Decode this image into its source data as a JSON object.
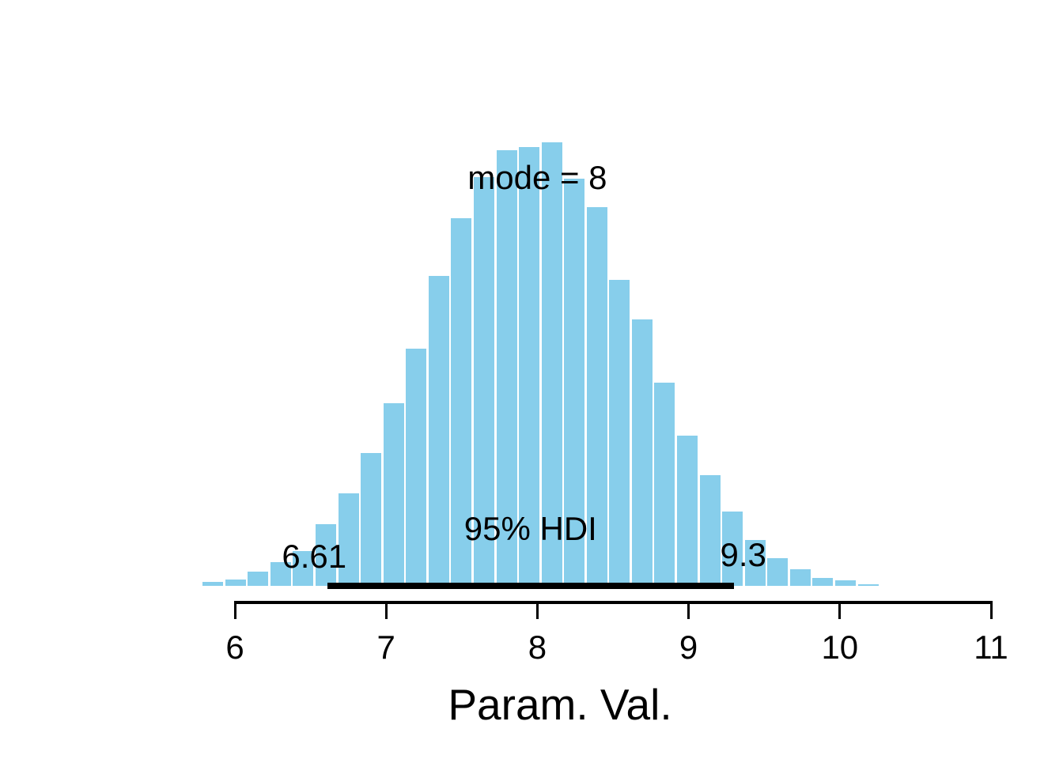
{
  "figure": {
    "background": "#ffffff",
    "bar_fill": "#87CEEB",
    "bar_gap_color": "#ffffff",
    "hdi_line_color": "#000000",
    "text_color": "#000000"
  },
  "chart_data": {
    "type": "bar",
    "subtype": "histogram-density",
    "title": "",
    "xlabel": "Param. Val.",
    "ylabel": "",
    "x_ticks": [
      6,
      7,
      8,
      9,
      10,
      11
    ],
    "xlim": [
      6,
      11
    ],
    "grid": false,
    "legend": "none",
    "bin_start": 5.78,
    "bin_width": 0.1494,
    "density": [
      0.0052,
      0.0082,
      0.0186,
      0.0309,
      0.0454,
      0.0804,
      0.1206,
      0.1732,
      0.2381,
      0.3093,
      0.4041,
      0.4794,
      0.533,
      0.568,
      0.5722,
      0.5784,
      0.5309,
      0.4938,
      0.399,
      0.3474,
      0.2649,
      0.1959,
      0.1443,
      0.0969,
      0.0598,
      0.0361,
      0.0216,
      0.0103,
      0.0072,
      0.0021
    ],
    "mode": 8,
    "hdi": {
      "mass": 0.95,
      "lo": 6.61,
      "hi": 9.3
    },
    "annotations": {
      "mode_text": "mode = 8",
      "hdi_text": "95% HDI",
      "lo_text": "6.61",
      "hi_text": "9.3"
    }
  }
}
